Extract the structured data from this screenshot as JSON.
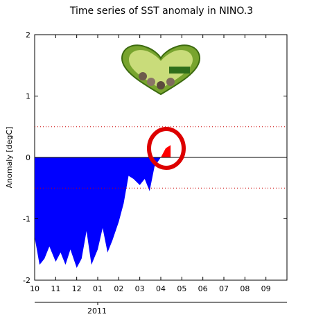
{
  "chart_data": {
    "type": "area",
    "title": "Time series of SST anomaly in NINO.3",
    "xlabel": "",
    "ylabel": "Anomaly [degC]",
    "ylim": [
      -2,
      2
    ],
    "yticks": [
      "-2",
      "-1",
      "0",
      "1",
      "2"
    ],
    "xticks": [
      "10",
      "11",
      "12",
      "01",
      "02",
      "03",
      "04",
      "05",
      "06",
      "07",
      "08",
      "09"
    ],
    "year_label": "2011",
    "reference_lines": [
      0.5,
      -0.5
    ],
    "colors": {
      "negative_fill": "#0000ff",
      "positive_fill": "#ff0000",
      "reference_line": "#cc0000",
      "annotation_circle": "#dd0000"
    },
    "series": [
      {
        "x": [
          "10-01",
          "10-08",
          "10-15",
          "10-22",
          "11-01",
          "11-08",
          "11-15",
          "11-22",
          "12-01",
          "12-08",
          "12-15",
          "12-22",
          "01-01",
          "01-08",
          "01-15",
          "01-22",
          "02-01",
          "02-08",
          "02-15",
          "02-22",
          "03-01",
          "03-08",
          "03-15",
          "03-22",
          "04-01",
          "04-08",
          "04-15"
        ],
        "values": [
          -1.3,
          -1.75,
          -1.65,
          -1.45,
          -1.7,
          -1.55,
          -1.75,
          -1.5,
          -1.8,
          -1.65,
          -1.2,
          -1.75,
          -1.5,
          -1.15,
          -1.55,
          -1.35,
          -1.05,
          -0.75,
          -0.3,
          -0.35,
          -0.45,
          -0.35,
          -0.55,
          -0.15,
          0.0,
          0.15,
          0.2
        ]
      }
    ],
    "annotation": "circle-highlight"
  }
}
